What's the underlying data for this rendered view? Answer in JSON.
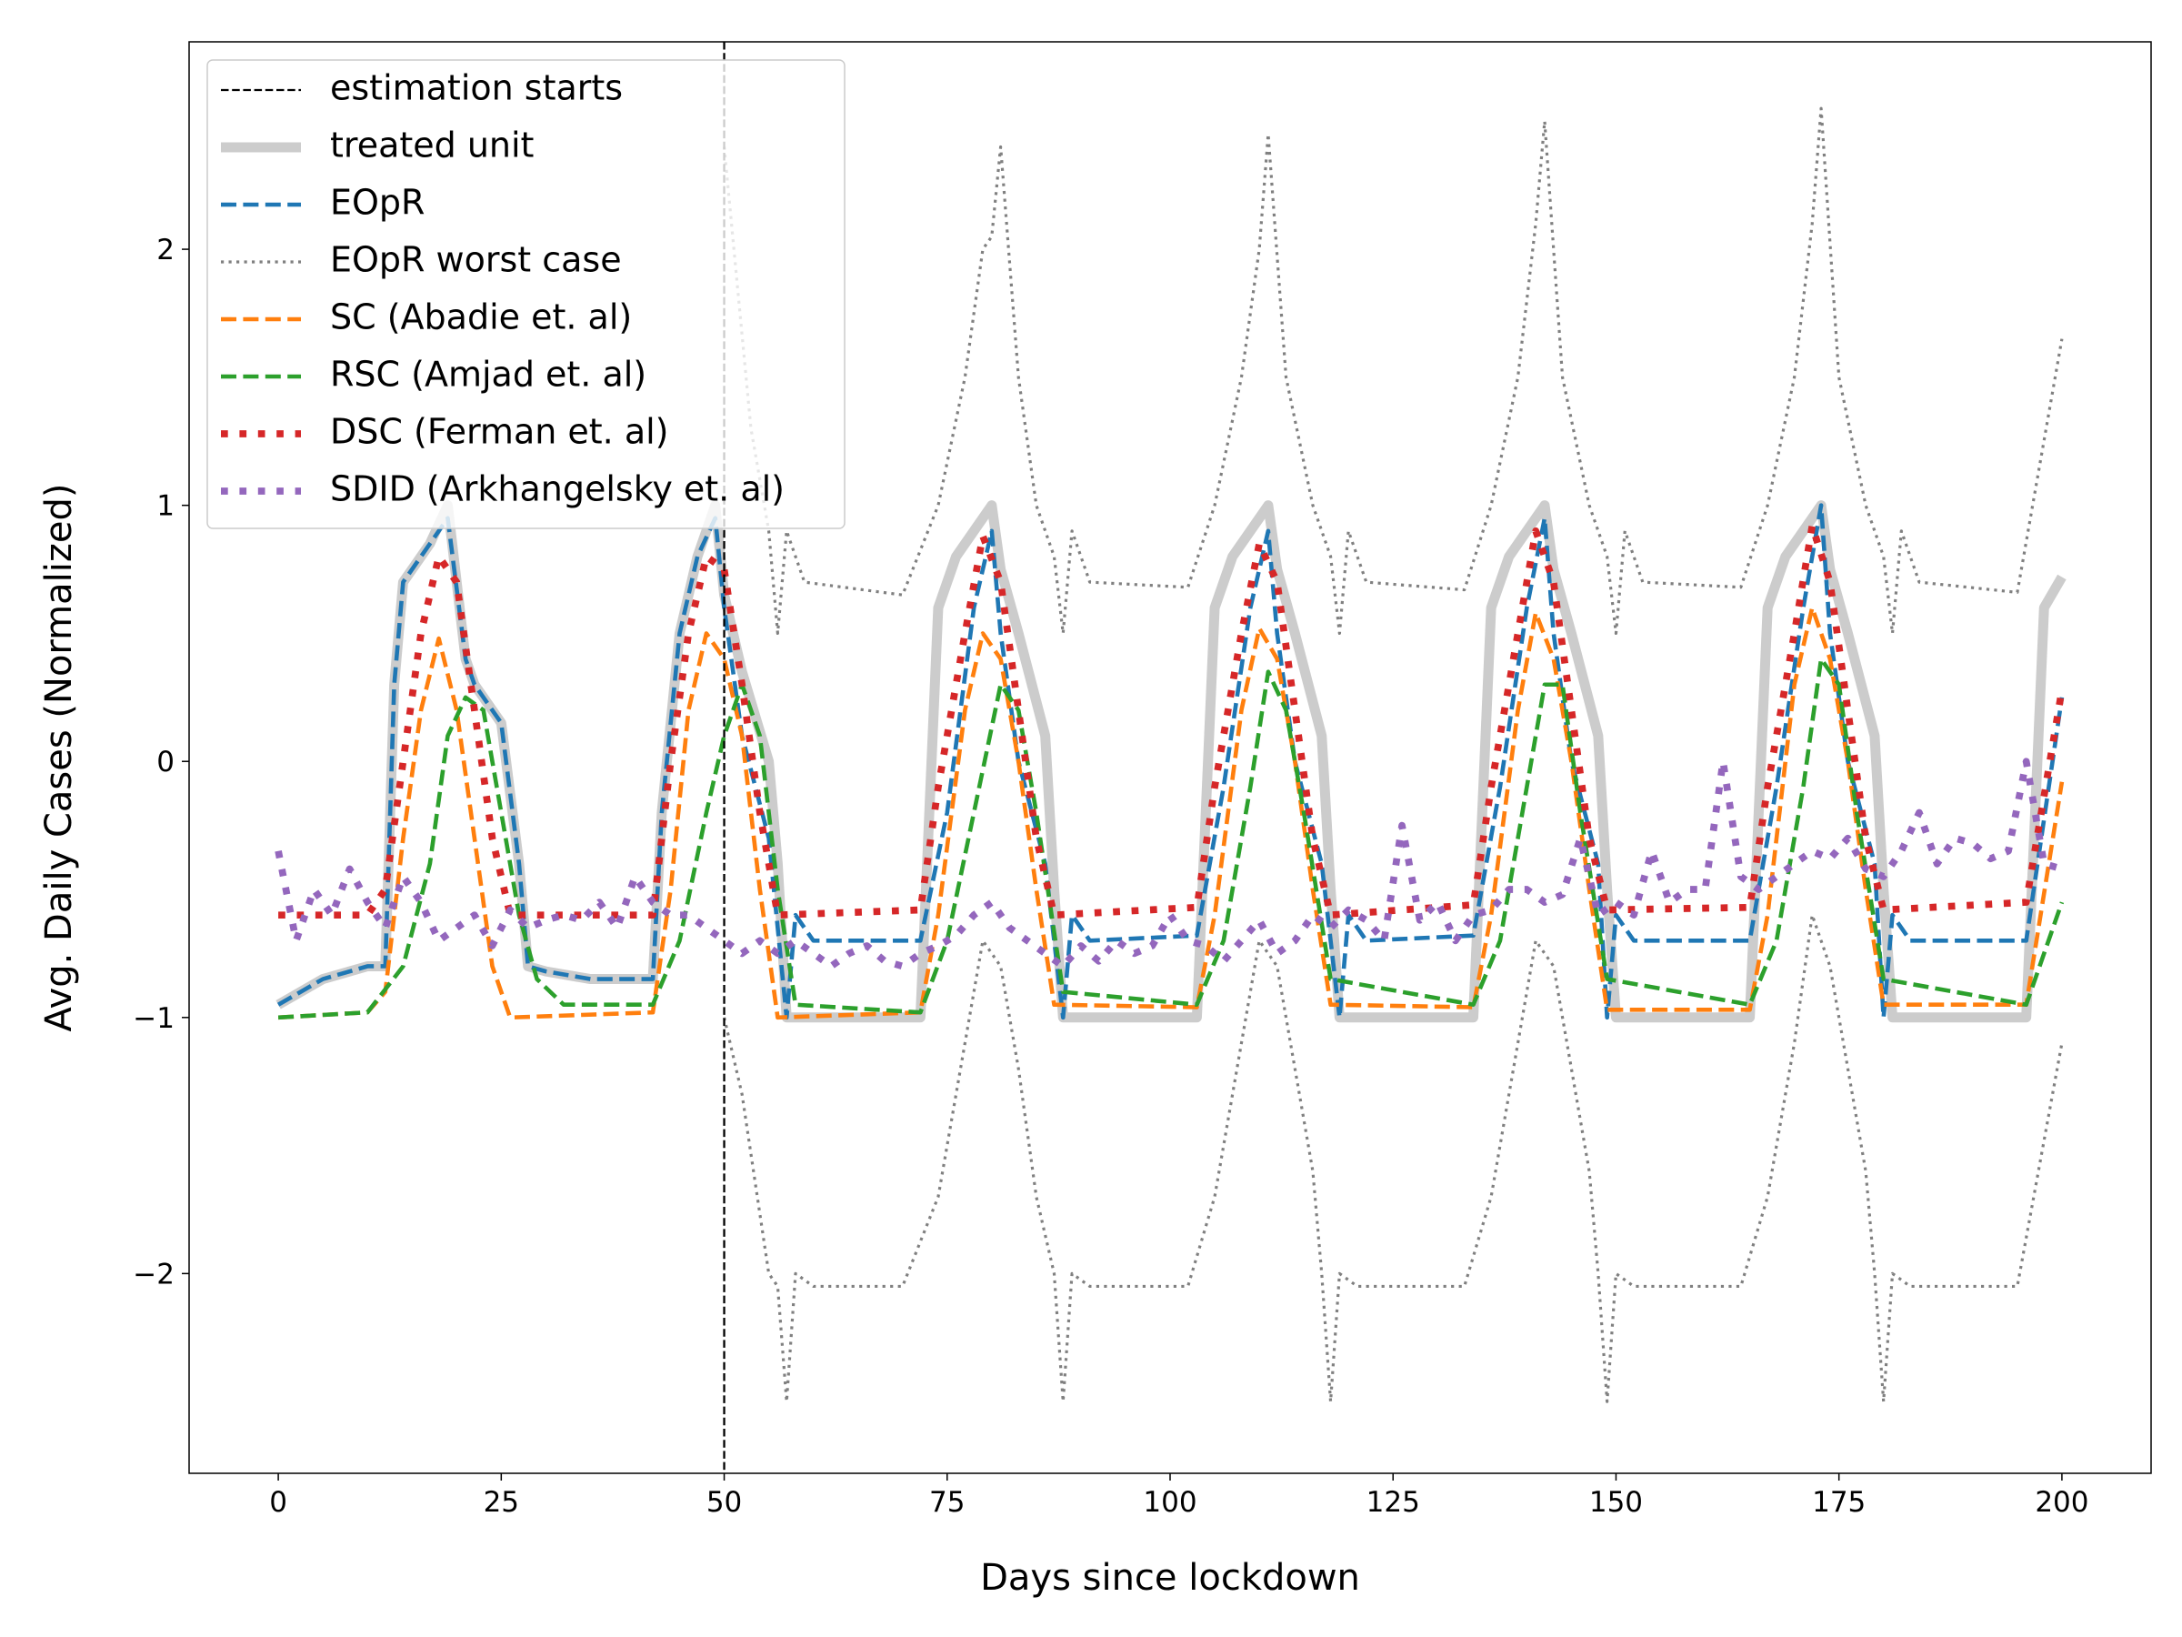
{
  "chart_data": {
    "type": "line",
    "xlabel": "Days since lockdown",
    "ylabel": "Avg. Daily Cases (Normalized)",
    "xlim": [
      -10,
      210
    ],
    "ylim": [
      -2.78,
      2.81
    ],
    "xticks": [
      0,
      25,
      50,
      75,
      100,
      125,
      150,
      175,
      200
    ],
    "yticks": [
      {
        "value": -2,
        "label": "−2"
      },
      {
        "value": -1,
        "label": "−1"
      },
      0,
      1,
      2
    ],
    "legend": "upper left",
    "vline": {
      "x": 50,
      "label": "estimation starts",
      "color": "#000000",
      "linestyle": "dashed"
    },
    "series": [
      {
        "name": "treated unit",
        "color": "#cccccc",
        "linestyle": "solid-wide",
        "x": [
          0,
          5,
          10,
          12,
          13,
          14,
          17,
          19,
          21,
          22,
          25,
          27,
          28,
          30,
          35,
          42,
          43,
          45,
          47,
          49,
          50,
          52,
          55,
          56,
          57,
          72,
          74,
          76,
          80,
          81,
          83,
          86,
          87,
          88,
          103,
          105,
          107,
          111,
          112,
          114,
          117,
          118,
          119,
          134,
          136,
          138,
          142,
          143,
          145,
          148,
          149,
          150,
          165,
          167,
          169,
          173,
          174,
          176,
          179,
          180,
          181,
          196,
          198,
          200
        ],
        "values": [
          -0.95,
          -0.85,
          -0.8,
          -0.8,
          0.3,
          0.7,
          0.85,
          1.0,
          0.4,
          0.3,
          0.15,
          -0.4,
          -0.8,
          -0.82,
          -0.85,
          -0.85,
          -0.2,
          0.5,
          0.8,
          1.0,
          0.65,
          0.35,
          0.0,
          -0.4,
          -1.0,
          -1.0,
          0.6,
          0.8,
          1.0,
          0.75,
          0.5,
          0.1,
          -0.5,
          -1.0,
          -1.0,
          0.6,
          0.8,
          1.0,
          0.75,
          0.5,
          0.1,
          -0.5,
          -1.0,
          -1.0,
          0.6,
          0.8,
          1.0,
          0.75,
          0.5,
          0.1,
          -0.5,
          -1.0,
          -1.0,
          0.6,
          0.8,
          1.0,
          0.75,
          0.5,
          0.1,
          -0.5,
          -1.0,
          -1.0,
          0.6,
          0.72
        ]
      },
      {
        "name": "EOpR",
        "color": "#1f77b4",
        "linestyle": "dashed",
        "x": [
          0,
          5,
          10,
          12,
          13,
          14,
          17,
          19,
          21,
          22,
          25,
          27,
          28,
          30,
          35,
          42,
          43,
          45,
          47,
          49,
          50,
          52,
          55,
          57,
          58,
          60,
          72,
          75,
          78,
          80,
          81,
          83,
          86,
          88,
          89,
          91,
          103,
          106,
          109,
          111,
          112,
          114,
          117,
          119,
          120,
          122,
          134,
          137,
          140,
          142,
          143,
          145,
          148,
          149,
          150,
          152,
          165,
          168,
          171,
          173,
          174,
          176,
          179,
          180,
          181,
          183,
          196,
          200
        ],
        "values": [
          -0.95,
          -0.85,
          -0.8,
          -0.8,
          0.3,
          0.7,
          0.85,
          0.95,
          0.4,
          0.3,
          0.15,
          -0.4,
          -0.8,
          -0.82,
          -0.85,
          -0.85,
          -0.2,
          0.5,
          0.8,
          0.95,
          0.6,
          0.1,
          -0.3,
          -1.0,
          -0.6,
          -0.7,
          -0.7,
          -0.2,
          0.6,
          0.9,
          0.5,
          0.0,
          -0.4,
          -1.0,
          -0.6,
          -0.7,
          -0.68,
          -0.1,
          0.6,
          0.9,
          0.5,
          0.0,
          -0.4,
          -1.0,
          -0.6,
          -0.7,
          -0.68,
          -0.1,
          0.6,
          0.95,
          0.5,
          0.0,
          -0.4,
          -1.0,
          -0.6,
          -0.7,
          -0.7,
          -0.1,
          0.6,
          1.0,
          0.5,
          0.0,
          -0.4,
          -1.0,
          -0.6,
          -0.7,
          -0.7,
          0.25
        ]
      },
      {
        "name": "EOpR worst case",
        "color": "#808080",
        "linestyle": "dotted",
        "x": [
          50,
          53,
          55,
          56,
          57,
          59,
          70,
          74,
          77,
          79,
          80,
          81,
          83,
          85,
          87,
          88,
          89,
          91,
          102,
          105,
          108,
          110,
          111,
          113,
          116,
          118,
          119,
          120,
          122,
          133,
          136,
          139,
          141,
          142,
          144,
          147,
          149,
          150,
          151,
          153,
          164,
          167,
          170,
          172,
          173,
          175,
          178,
          180,
          181,
          182,
          184,
          195,
          200
        ],
        "values": [
          2.4,
          1.3,
          0.9,
          0.5,
          0.9,
          0.7,
          0.65,
          1.0,
          1.5,
          2.0,
          2.05,
          2.4,
          1.5,
          1.0,
          0.8,
          0.5,
          0.9,
          0.7,
          0.68,
          1.0,
          1.5,
          2.0,
          2.45,
          1.5,
          1.0,
          0.8,
          0.5,
          0.9,
          0.7,
          0.67,
          1.0,
          1.5,
          2.1,
          2.5,
          1.5,
          1.0,
          0.8,
          0.5,
          0.9,
          0.7,
          0.68,
          1.0,
          1.5,
          2.1,
          2.55,
          1.5,
          1.0,
          0.8,
          0.5,
          0.9,
          0.7,
          0.66,
          1.65
        ],
        "x_lower": [
          50,
          52,
          55,
          56,
          57,
          58,
          60,
          70,
          74,
          77,
          79,
          81,
          83,
          85,
          87,
          88,
          89,
          91,
          102,
          105,
          108,
          110,
          112,
          114,
          116,
          117,
          118,
          119,
          121,
          133,
          136,
          139,
          141,
          143,
          145,
          147,
          148,
          149,
          150,
          152,
          164,
          167,
          170,
          172,
          174,
          176,
          178,
          179,
          180,
          181,
          183,
          195,
          200
        ],
        "values_lower": [
          -1.0,
          -1.3,
          -2.0,
          -2.05,
          -2.5,
          -2.0,
          -2.05,
          -2.05,
          -1.7,
          -1.1,
          -0.7,
          -0.8,
          -1.2,
          -1.7,
          -2.0,
          -2.5,
          -2.0,
          -2.05,
          -2.05,
          -1.7,
          -1.1,
          -0.7,
          -0.8,
          -1.2,
          -1.6,
          -2.0,
          -2.5,
          -2.0,
          -2.05,
          -2.05,
          -1.7,
          -1.1,
          -0.7,
          -0.8,
          -1.2,
          -1.6,
          -2.0,
          -2.5,
          -2.0,
          -2.05,
          -2.05,
          -1.7,
          -1.1,
          -0.6,
          -0.8,
          -1.2,
          -1.6,
          -2.0,
          -2.5,
          -2.0,
          -2.05,
          -2.05,
          -1.1
        ]
      },
      {
        "name": "SC (Abadie et. al)",
        "color": "#ff7f0e",
        "linestyle": "dashed",
        "x": [
          0,
          10,
          12,
          14,
          16,
          18,
          20,
          22,
          24,
          26,
          42,
          44,
          46,
          48,
          50,
          52,
          54,
          56,
          72,
          74,
          77,
          79,
          81,
          83,
          85,
          87,
          103,
          105,
          108,
          110,
          112,
          114,
          116,
          118,
          134,
          136,
          139,
          141,
          143,
          145,
          147,
          149,
          165,
          167,
          170,
          172,
          174,
          176,
          178,
          180,
          196,
          200
        ],
        "values": [
          -1.0,
          -0.98,
          -0.9,
          -0.3,
          0.2,
          0.48,
          0.2,
          -0.3,
          -0.8,
          -1.0,
          -0.98,
          -0.5,
          0.2,
          0.5,
          0.4,
          0.1,
          -0.5,
          -1.0,
          -0.98,
          -0.6,
          0.2,
          0.5,
          0.4,
          0.0,
          -0.5,
          -0.95,
          -0.96,
          -0.6,
          0.2,
          0.52,
          0.4,
          0.0,
          -0.5,
          -0.95,
          -0.96,
          -0.6,
          0.2,
          0.58,
          0.4,
          0.0,
          -0.5,
          -0.97,
          -0.97,
          -0.6,
          0.3,
          0.6,
          0.4,
          0.0,
          -0.5,
          -0.95,
          -0.95,
          -0.08
        ]
      },
      {
        "name": "RSC (Amjad et. al)",
        "color": "#2ca02c",
        "linestyle": "dashed",
        "x": [
          0,
          10,
          14,
          17,
          19,
          21,
          23,
          25,
          27,
          29,
          32,
          42,
          45,
          48,
          50,
          52,
          54,
          56,
          58,
          72,
          75,
          78,
          81,
          83,
          85,
          88,
          103,
          106,
          109,
          111,
          113,
          115,
          118,
          134,
          137,
          140,
          142,
          144,
          146,
          149,
          165,
          168,
          171,
          173,
          175,
          177,
          180,
          196,
          200
        ],
        "values": [
          -1.0,
          -0.98,
          -0.8,
          -0.4,
          0.1,
          0.25,
          0.2,
          -0.2,
          -0.6,
          -0.85,
          -0.95,
          -0.95,
          -0.7,
          -0.2,
          0.1,
          0.3,
          0.1,
          -0.5,
          -0.95,
          -0.98,
          -0.7,
          -0.2,
          0.3,
          0.2,
          -0.2,
          -0.9,
          -0.95,
          -0.7,
          -0.1,
          0.35,
          0.2,
          -0.2,
          -0.85,
          -0.95,
          -0.7,
          -0.1,
          0.3,
          0.3,
          -0.2,
          -0.85,
          -0.95,
          -0.7,
          -0.1,
          0.4,
          0.3,
          -0.2,
          -0.85,
          -0.95,
          -0.55
        ]
      },
      {
        "name": "DSC (Ferman et. al)",
        "color": "#d62728",
        "linestyle": "dotted-wide",
        "x": [
          0,
          10,
          12,
          14,
          16,
          18,
          20,
          22,
          24,
          26,
          42,
          44,
          46,
          48,
          50,
          52,
          54,
          56,
          72,
          74,
          77,
          79,
          81,
          83,
          85,
          87,
          103,
          105,
          108,
          110,
          112,
          114,
          116,
          118,
          134,
          136,
          139,
          141,
          143,
          145,
          147,
          149,
          165,
          167,
          170,
          172,
          174,
          176,
          178,
          180,
          196,
          200
        ],
        "values": [
          -0.6,
          -0.6,
          -0.5,
          0.0,
          0.5,
          0.8,
          0.7,
          0.2,
          -0.3,
          -0.6,
          -0.6,
          0.0,
          0.5,
          0.8,
          0.75,
          0.3,
          -0.2,
          -0.6,
          -0.58,
          -0.1,
          0.5,
          0.88,
          0.7,
          0.2,
          -0.3,
          -0.6,
          -0.57,
          -0.1,
          0.5,
          0.85,
          0.7,
          0.2,
          -0.3,
          -0.6,
          -0.56,
          -0.1,
          0.5,
          0.9,
          0.7,
          0.2,
          -0.3,
          -0.58,
          -0.57,
          -0.1,
          0.5,
          0.92,
          0.7,
          0.2,
          -0.3,
          -0.58,
          -0.55,
          0.28
        ]
      },
      {
        "name": "SDID (Arkhangelsky et. al)",
        "color": "#9467bd",
        "linestyle": "dotted-wide",
        "x": [
          0,
          2,
          4,
          6,
          8,
          10,
          12,
          14,
          16,
          18,
          20,
          22,
          24,
          26,
          28,
          30,
          32,
          34,
          36,
          38,
          40,
          42,
          44,
          46,
          48,
          50,
          52,
          54,
          56,
          58,
          60,
          62,
          64,
          66,
          68,
          70,
          72,
          74,
          76,
          78,
          80,
          82,
          84,
          86,
          88,
          90,
          92,
          94,
          96,
          98,
          100,
          102,
          104,
          106,
          108,
          110,
          112,
          114,
          116,
          118,
          120,
          122,
          124,
          126,
          128,
          130,
          132,
          134,
          136,
          138,
          140,
          142,
          144,
          146,
          148,
          150,
          152,
          154,
          156,
          158,
          160,
          162,
          164,
          166,
          168,
          170,
          172,
          174,
          176,
          178,
          180,
          182,
          184,
          186,
          188,
          190,
          192,
          194,
          196,
          198,
          200
        ],
        "values": [
          -0.35,
          -0.7,
          -0.5,
          -0.6,
          -0.42,
          -0.55,
          -0.65,
          -0.45,
          -0.55,
          -0.7,
          -0.65,
          -0.6,
          -0.72,
          -0.58,
          -0.65,
          -0.62,
          -0.6,
          -0.62,
          -0.55,
          -0.65,
          -0.45,
          -0.55,
          -0.6,
          -0.6,
          -0.65,
          -0.7,
          -0.75,
          -0.7,
          -0.75,
          -0.7,
          -0.75,
          -0.8,
          -0.75,
          -0.72,
          -0.78,
          -0.8,
          -0.75,
          -0.72,
          -0.68,
          -0.6,
          -0.55,
          -0.65,
          -0.7,
          -0.75,
          -0.8,
          -0.72,
          -0.78,
          -0.7,
          -0.75,
          -0.72,
          -0.6,
          -0.7,
          -0.72,
          -0.78,
          -0.7,
          -0.62,
          -0.75,
          -0.7,
          -0.6,
          -0.65,
          -0.58,
          -0.62,
          -0.7,
          -0.25,
          -0.62,
          -0.55,
          -0.7,
          -0.6,
          -0.58,
          -0.5,
          -0.5,
          -0.55,
          -0.52,
          -0.3,
          -0.6,
          -0.55,
          -0.6,
          -0.35,
          -0.55,
          -0.5,
          -0.5,
          0,
          -0.45,
          -0.5,
          -0.45,
          -0.4,
          -0.35,
          -0.38,
          -0.3,
          -0.42,
          -0.45,
          -0.35,
          -0.2,
          -0.4,
          -0.3,
          -0.32,
          -0.38,
          -0.35,
          0,
          -0.4,
          -0.42
        ]
      }
    ]
  }
}
